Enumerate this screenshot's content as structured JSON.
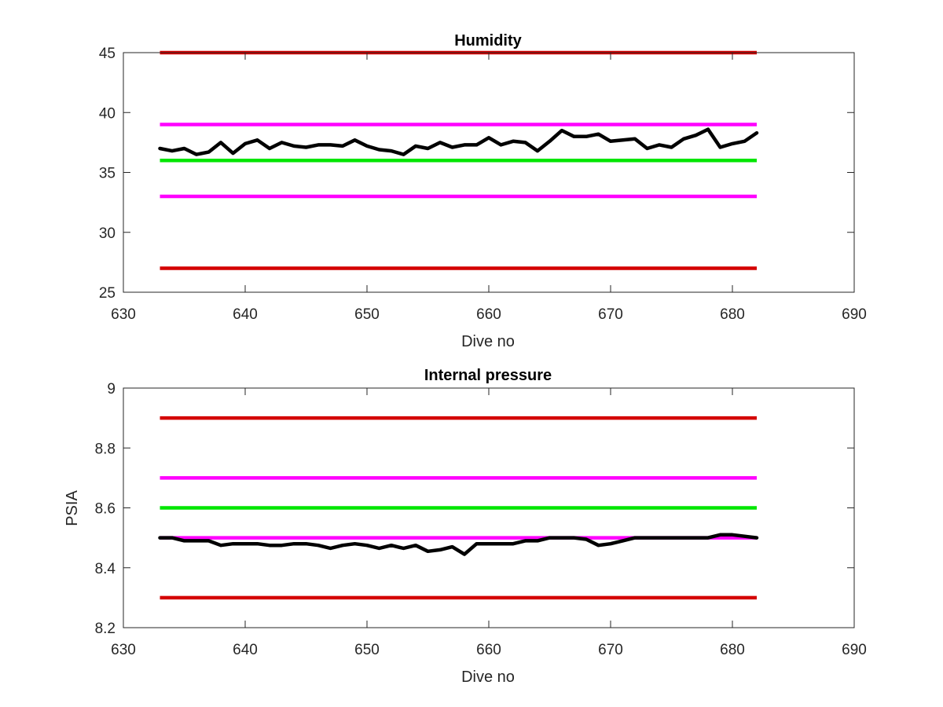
{
  "chart_data": [
    {
      "type": "line",
      "title": "Humidity",
      "xlabel": "Dive no",
      "ylabel": "",
      "xlim": [
        630,
        690
      ],
      "ylim": [
        25,
        45
      ],
      "xticks": [
        630,
        640,
        650,
        660,
        670,
        680,
        690
      ],
      "yticks": [
        25,
        30,
        35,
        40,
        45
      ],
      "grid": false,
      "reference_lines": [
        {
          "y": 45,
          "x_range": [
            633,
            682
          ],
          "color": "#d40000"
        },
        {
          "y": 39,
          "x_range": [
            633,
            682
          ],
          "color": "#ff00ff"
        },
        {
          "y": 36,
          "x_range": [
            633,
            682
          ],
          "color": "#00e600"
        },
        {
          "y": 33,
          "x_range": [
            633,
            682
          ],
          "color": "#ff00ff"
        },
        {
          "y": 27,
          "x_range": [
            633,
            682
          ],
          "color": "#d40000"
        }
      ],
      "series": [
        {
          "color": "#000000",
          "x": [
            633,
            634,
            635,
            636,
            637,
            638,
            639,
            640,
            641,
            642,
            643,
            644,
            645,
            646,
            647,
            648,
            649,
            650,
            651,
            652,
            653,
            654,
            655,
            656,
            657,
            658,
            659,
            660,
            661,
            662,
            663,
            664,
            665,
            666,
            667,
            668,
            669,
            670,
            671,
            672,
            673,
            674,
            675,
            676,
            677,
            678,
            679,
            680,
            681,
            682
          ],
          "y": [
            37.0,
            36.8,
            37.0,
            36.5,
            36.7,
            37.5,
            36.6,
            37.4,
            37.7,
            37.0,
            37.5,
            37.2,
            37.1,
            37.3,
            37.3,
            37.2,
            37.7,
            37.2,
            36.9,
            36.8,
            36.5,
            37.2,
            37.0,
            37.5,
            37.1,
            37.3,
            37.3,
            37.9,
            37.3,
            37.6,
            37.5,
            36.8,
            37.6,
            38.5,
            38.0,
            38.0,
            38.2,
            37.6,
            37.7,
            37.8,
            37.0,
            37.3,
            37.1,
            37.8,
            38.1,
            38.6,
            37.1,
            37.4,
            37.6,
            38.3
          ]
        }
      ]
    },
    {
      "type": "line",
      "title": "Internal pressure",
      "xlabel": "Dive no",
      "ylabel": "PSIA",
      "xlim": [
        630,
        690
      ],
      "ylim": [
        8.2,
        9
      ],
      "xticks": [
        630,
        640,
        650,
        660,
        670,
        680,
        690
      ],
      "yticks": [
        8.2,
        8.4,
        8.6,
        8.8,
        9
      ],
      "grid": false,
      "reference_lines": [
        {
          "y": 8.9,
          "x_range": [
            633,
            682
          ],
          "color": "#d40000"
        },
        {
          "y": 8.7,
          "x_range": [
            633,
            682
          ],
          "color": "#ff00ff"
        },
        {
          "y": 8.6,
          "x_range": [
            633,
            682
          ],
          "color": "#00e600"
        },
        {
          "y": 8.5,
          "x_range": [
            633,
            682
          ],
          "color": "#ff00ff"
        },
        {
          "y": 8.3,
          "x_range": [
            633,
            682
          ],
          "color": "#d40000"
        }
      ],
      "series": [
        {
          "color": "#000000",
          "x": [
            633,
            634,
            635,
            636,
            637,
            638,
            639,
            640,
            641,
            642,
            643,
            644,
            645,
            646,
            647,
            648,
            649,
            650,
            651,
            652,
            653,
            654,
            655,
            656,
            657,
            658,
            659,
            660,
            661,
            662,
            663,
            664,
            665,
            666,
            667,
            668,
            669,
            670,
            671,
            672,
            673,
            674,
            675,
            676,
            677,
            678,
            679,
            680,
            681,
            682
          ],
          "y": [
            8.5,
            8.5,
            8.49,
            8.49,
            8.49,
            8.475,
            8.48,
            8.48,
            8.48,
            8.475,
            8.475,
            8.48,
            8.48,
            8.475,
            8.465,
            8.475,
            8.48,
            8.475,
            8.465,
            8.475,
            8.465,
            8.475,
            8.455,
            8.46,
            8.47,
            8.445,
            8.48,
            8.48,
            8.48,
            8.48,
            8.49,
            8.49,
            8.5,
            8.5,
            8.5,
            8.495,
            8.475,
            8.48,
            8.49,
            8.5,
            8.5,
            8.5,
            8.5,
            8.5,
            8.5,
            8.5,
            8.51,
            8.51,
            8.505,
            8.5
          ]
        }
      ]
    }
  ]
}
